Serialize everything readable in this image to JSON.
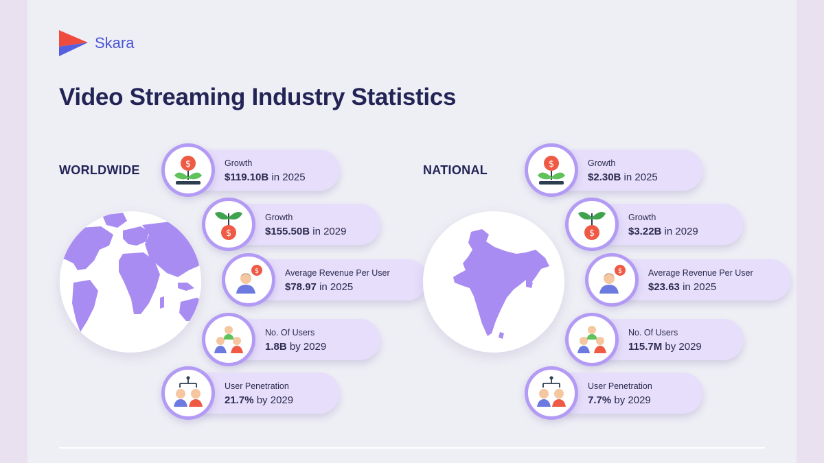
{
  "brand": {
    "name": "Skara",
    "logo_colors": {
      "top": "#f04b3f",
      "bottom": "#5560e0"
    }
  },
  "page_title": "Video Streaming Industry Statistics",
  "colors": {
    "accent": "#b39bf5",
    "pill": "#e6defa",
    "map": "#a98cf2",
    "title": "#232456"
  },
  "worldwide": {
    "label": "WORLDWIDE",
    "stats": [
      {
        "icon": "money-plant-icon",
        "label": "Growth",
        "value": "$119.10B",
        "suffix": "in 2025"
      },
      {
        "icon": "money-sprout-icon",
        "label": "Growth",
        "value": "$155.50B",
        "suffix": "in 2029"
      },
      {
        "icon": "user-revenue-icon",
        "label": "Average Revenue Per User",
        "value": "$78.97",
        "suffix": "in 2025"
      },
      {
        "icon": "user-group-icon",
        "label": "No. Of Users",
        "value": "1.8B",
        "suffix": "by 2029"
      },
      {
        "icon": "user-network-icon",
        "label": "User Penetration",
        "value": "21.7%",
        "suffix": "by 2029"
      }
    ]
  },
  "national": {
    "label": "NATIONAL",
    "stats": [
      {
        "icon": "money-plant-icon",
        "label": "Growth",
        "value": "$2.30B",
        "suffix": "in 2025"
      },
      {
        "icon": "money-sprout-icon",
        "label": "Growth",
        "value": "$3.22B",
        "suffix": "in 2029"
      },
      {
        "icon": "user-revenue-icon",
        "label": "Average Revenue Per User",
        "value": "$23.63",
        "suffix": "in 2025"
      },
      {
        "icon": "user-group-icon",
        "label": "No. Of Users",
        "value": "115.7M",
        "suffix": "by 2029"
      },
      {
        "icon": "user-network-icon",
        "label": "User Penetration",
        "value": "7.7%",
        "suffix": "by 2029"
      }
    ]
  }
}
